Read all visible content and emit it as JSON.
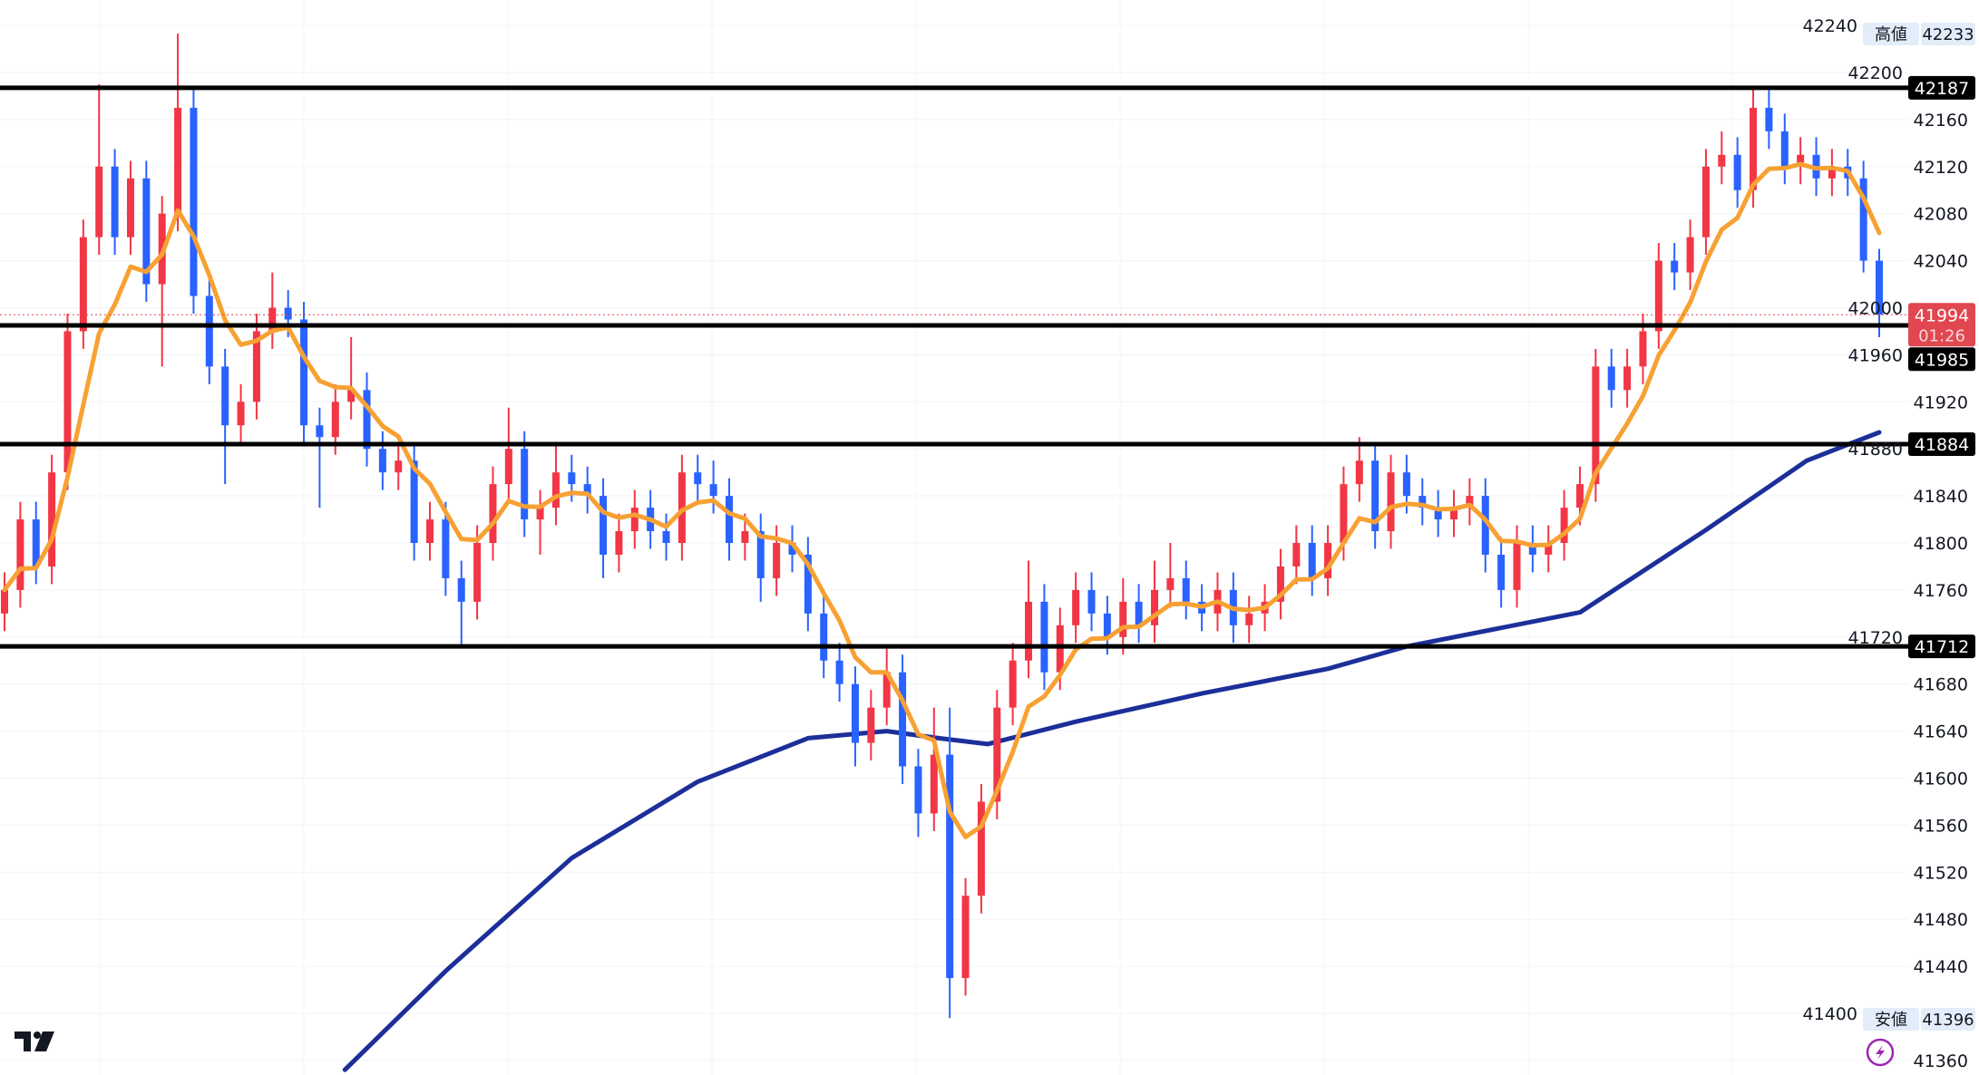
{
  "chart_data": {
    "type": "candlestick",
    "ylim": [
      41340,
      42250
    ],
    "y_ticks": [
      41360,
      41400,
      41440,
      41480,
      41520,
      41560,
      41600,
      41640,
      41680,
      41720,
      41760,
      41800,
      41840,
      41880,
      41920,
      41960,
      42000,
      42040,
      42080,
      42120,
      42160,
      42200,
      42240
    ],
    "grid": true,
    "colors": {
      "up": "#f23645",
      "down": "#2962ff",
      "ma_short": "#f7a133",
      "ma_long": "#1c2f99",
      "level_line": "#000000",
      "last_price": "#e0474f"
    },
    "ohlc": [
      [
        41740,
        41775,
        41725,
        41760
      ],
      [
        41760,
        41835,
        41745,
        41820
      ],
      [
        41820,
        41835,
        41765,
        41780
      ],
      [
        41780,
        41875,
        41765,
        41860
      ],
      [
        41860,
        41995,
        41845,
        41980
      ],
      [
        41980,
        42075,
        41965,
        42060
      ],
      [
        42060,
        42190,
        42045,
        42120
      ],
      [
        42120,
        42135,
        42045,
        42060
      ],
      [
        42060,
        42125,
        42045,
        42110
      ],
      [
        42110,
        42125,
        42005,
        42020
      ],
      [
        42020,
        42095,
        41950,
        42080
      ],
      [
        42080,
        42233,
        42065,
        42170
      ],
      [
        42170,
        42185,
        41995,
        42010
      ],
      [
        42010,
        42025,
        41935,
        41950
      ],
      [
        41950,
        41965,
        41850,
        41900
      ],
      [
        41900,
        41935,
        41885,
        41920
      ],
      [
        41920,
        41995,
        41905,
        41980
      ],
      [
        41980,
        42030,
        41965,
        42000
      ],
      [
        42000,
        42015,
        41975,
        41990
      ],
      [
        41990,
        42005,
        41885,
        41900
      ],
      [
        41900,
        41915,
        41830,
        41890
      ],
      [
        41890,
        41935,
        41875,
        41920
      ],
      [
        41920,
        41975,
        41905,
        41930
      ],
      [
        41930,
        41945,
        41865,
        41880
      ],
      [
        41880,
        41895,
        41845,
        41860
      ],
      [
        41860,
        41885,
        41845,
        41870
      ],
      [
        41870,
        41885,
        41785,
        41800
      ],
      [
        41800,
        41835,
        41785,
        41820
      ],
      [
        41820,
        41835,
        41755,
        41770
      ],
      [
        41770,
        41785,
        41712,
        41750
      ],
      [
        41750,
        41815,
        41735,
        41800
      ],
      [
        41800,
        41865,
        41785,
        41850
      ],
      [
        41850,
        41915,
        41835,
        41880
      ],
      [
        41880,
        41895,
        41805,
        41820
      ],
      [
        41820,
        41845,
        41790,
        41830
      ],
      [
        41830,
        41885,
        41815,
        41860
      ],
      [
        41860,
        41875,
        41835,
        41850
      ],
      [
        41850,
        41865,
        41825,
        41840
      ],
      [
        41840,
        41855,
        41770,
        41790
      ],
      [
        41790,
        41825,
        41775,
        41810
      ],
      [
        41810,
        41845,
        41795,
        41830
      ],
      [
        41830,
        41845,
        41795,
        41810
      ],
      [
        41810,
        41825,
        41785,
        41800
      ],
      [
        41800,
        41875,
        41785,
        41860
      ],
      [
        41860,
        41875,
        41835,
        41850
      ],
      [
        41850,
        41870,
        41825,
        41840
      ],
      [
        41840,
        41855,
        41785,
        41800
      ],
      [
        41800,
        41825,
        41785,
        41810
      ],
      [
        41810,
        41825,
        41750,
        41770
      ],
      [
        41770,
        41815,
        41755,
        41800
      ],
      [
        41800,
        41815,
        41775,
        41790
      ],
      [
        41790,
        41805,
        41725,
        41740
      ],
      [
        41740,
        41755,
        41685,
        41700
      ],
      [
        41700,
        41715,
        41665,
        41680
      ],
      [
        41680,
        41695,
        41610,
        41630
      ],
      [
        41630,
        41675,
        41615,
        41660
      ],
      [
        41660,
        41710,
        41645,
        41690
      ],
      [
        41690,
        41705,
        41595,
        41610
      ],
      [
        41610,
        41625,
        41550,
        41570
      ],
      [
        41570,
        41660,
        41555,
        41620
      ],
      [
        41620,
        41660,
        41396,
        41430
      ],
      [
        41430,
        41515,
        41415,
        41500
      ],
      [
        41500,
        41595,
        41485,
        41580
      ],
      [
        41580,
        41675,
        41565,
        41660
      ],
      [
        41660,
        41715,
        41645,
        41700
      ],
      [
        41700,
        41785,
        41685,
        41750
      ],
      [
        41750,
        41765,
        41675,
        41690
      ],
      [
        41690,
        41745,
        41675,
        41730
      ],
      [
        41730,
        41775,
        41715,
        41760
      ],
      [
        41760,
        41775,
        41725,
        41740
      ],
      [
        41740,
        41755,
        41705,
        41720
      ],
      [
        41720,
        41770,
        41705,
        41750
      ],
      [
        41750,
        41765,
        41715,
        41730
      ],
      [
        41730,
        41785,
        41715,
        41760
      ],
      [
        41760,
        41800,
        41745,
        41770
      ],
      [
        41770,
        41785,
        41735,
        41750
      ],
      [
        41750,
        41765,
        41725,
        41740
      ],
      [
        41740,
        41775,
        41725,
        41760
      ],
      [
        41760,
        41775,
        41715,
        41730
      ],
      [
        41730,
        41755,
        41715,
        41740
      ],
      [
        41740,
        41765,
        41725,
        41750
      ],
      [
        41750,
        41795,
        41735,
        41780
      ],
      [
        41780,
        41815,
        41765,
        41800
      ],
      [
        41800,
        41815,
        41755,
        41770
      ],
      [
        41770,
        41815,
        41755,
        41800
      ],
      [
        41800,
        41865,
        41785,
        41850
      ],
      [
        41850,
        41890,
        41835,
        41870
      ],
      [
        41870,
        41885,
        41795,
        41810
      ],
      [
        41810,
        41875,
        41795,
        41860
      ],
      [
        41860,
        41875,
        41825,
        41840
      ],
      [
        41840,
        41855,
        41815,
        41830
      ],
      [
        41830,
        41845,
        41805,
        41820
      ],
      [
        41820,
        41845,
        41805,
        41830
      ],
      [
        41830,
        41855,
        41815,
        41840
      ],
      [
        41840,
        41855,
        41775,
        41790
      ],
      [
        41790,
        41805,
        41745,
        41760
      ],
      [
        41760,
        41815,
        41745,
        41800
      ],
      [
        41800,
        41815,
        41775,
        41790
      ],
      [
        41790,
        41815,
        41775,
        41800
      ],
      [
        41800,
        41845,
        41785,
        41830
      ],
      [
        41830,
        41865,
        41815,
        41850
      ],
      [
        41850,
        41965,
        41835,
        41950
      ],
      [
        41950,
        41965,
        41915,
        41930
      ],
      [
        41930,
        41965,
        41915,
        41950
      ],
      [
        41950,
        41995,
        41935,
        41980
      ],
      [
        41980,
        42055,
        41965,
        42040
      ],
      [
        42040,
        42055,
        42015,
        42030
      ],
      [
        42030,
        42075,
        42015,
        42060
      ],
      [
        42060,
        42135,
        42045,
        42120
      ],
      [
        42120,
        42150,
        42105,
        42130
      ],
      [
        42130,
        42145,
        42085,
        42100
      ],
      [
        42100,
        42187,
        42085,
        42170
      ],
      [
        42170,
        42185,
        42135,
        42150
      ],
      [
        42150,
        42165,
        42105,
        42120
      ],
      [
        42120,
        42145,
        42105,
        42130
      ],
      [
        42130,
        42145,
        42095,
        42110
      ],
      [
        42110,
        42135,
        42095,
        42120
      ],
      [
        42120,
        42135,
        42095,
        42110
      ],
      [
        42110,
        42125,
        42030,
        42040
      ],
      [
        42040,
        42050,
        41975,
        41994
      ]
    ],
    "ma_long": [
      [
        21.6,
        41352
      ],
      [
        28,
        41436
      ],
      [
        36,
        41532
      ],
      [
        44,
        41597
      ],
      [
        51,
        41634
      ],
      [
        56,
        41640
      ],
      [
        59.3,
        41634
      ],
      [
        62.4,
        41629
      ],
      [
        68,
        41648
      ],
      [
        76,
        41672
      ],
      [
        84,
        41693
      ],
      [
        89,
        41712
      ],
      [
        100,
        41741
      ],
      [
        108,
        41811
      ],
      [
        114.4,
        41870
      ],
      [
        119,
        41894
      ]
    ],
    "level_lines": [
      {
        "value": 42187,
        "label": "42187"
      },
      {
        "value": 41985,
        "label": "41985"
      },
      {
        "value": 41884,
        "label": "41884"
      },
      {
        "value": 41712,
        "label": "41712"
      }
    ],
    "last_price": {
      "value": 41994,
      "label": "41994",
      "countdown": "01:26"
    },
    "high_marker": {
      "title": "高値",
      "value": "42233"
    },
    "low_marker": {
      "title": "安値",
      "value": "41396"
    }
  },
  "icons": {
    "logo": "tradingview-logo",
    "alert": "lightning-icon"
  }
}
